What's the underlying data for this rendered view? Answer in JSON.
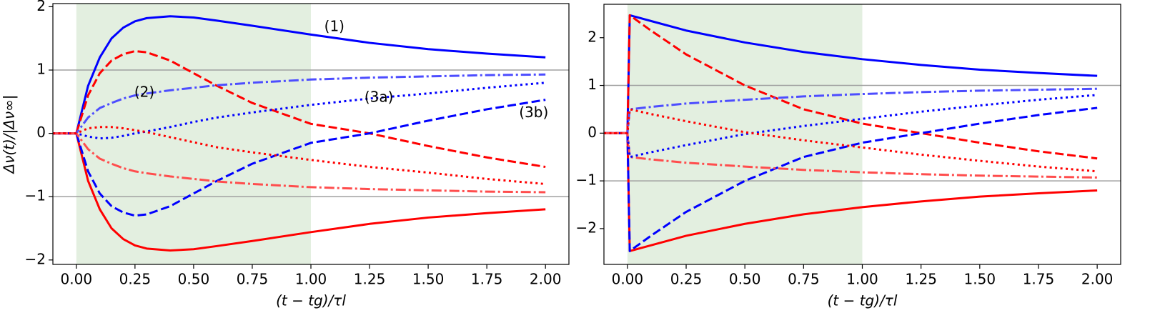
{
  "chart_data": [
    {
      "type": "line",
      "xlabel": "(t − tg)/τl",
      "ylabel": "Δν(t)/|Δν∞|",
      "xlim": [
        -0.1,
        2.1
      ],
      "ylim": [
        -2.07,
        2.05
      ],
      "xticks": [
        {
          "value": 0,
          "label": "0.00"
        },
        {
          "value": 0.25,
          "label": "0.25"
        },
        {
          "value": 0.5,
          "label": "0.50"
        },
        {
          "value": 0.75,
          "label": "0.75"
        },
        {
          "value": 1,
          "label": "1.00"
        },
        {
          "value": 1.25,
          "label": "1.25"
        },
        {
          "value": 1.5,
          "label": "1.50"
        },
        {
          "value": 1.75,
          "label": "1.75"
        },
        {
          "value": 2,
          "label": "2.00"
        }
      ],
      "yticks": [
        {
          "value": -2,
          "label": "−2"
        },
        {
          "value": -1,
          "label": "−1"
        },
        0,
        1,
        2
      ],
      "shade": [
        0,
        1
      ],
      "shade_color": "#e3efe0",
      "hlines": [
        -1,
        1
      ],
      "annotations": [
        "(1)",
        "(2)",
        "(3a)",
        "(3b)"
      ],
      "x": [
        -0.1,
        0,
        0.05,
        0.1,
        0.15,
        0.2,
        0.25,
        0.3,
        0.4,
        0.5,
        0.6,
        0.75,
        1.0,
        1.25,
        1.5,
        1.75,
        2.0
      ],
      "series": [
        {
          "color": "#0000ff",
          "style": "solid",
          "values": [
            0,
            0,
            0.75,
            1.2,
            1.5,
            1.67,
            1.77,
            1.82,
            1.85,
            1.83,
            1.78,
            1.7,
            1.56,
            1.43,
            1.33,
            1.26,
            1.2
          ]
        },
        {
          "color": "#ff0000",
          "style": "solid",
          "values": [
            0,
            0,
            -0.75,
            -1.2,
            -1.5,
            -1.67,
            -1.77,
            -1.82,
            -1.85,
            -1.83,
            -1.78,
            -1.7,
            -1.56,
            -1.43,
            -1.33,
            -1.26,
            -1.2
          ]
        },
        {
          "color": "#ff0000",
          "style": "dashed",
          "values": [
            0,
            0,
            0.6,
            0.95,
            1.15,
            1.25,
            1.3,
            1.28,
            1.15,
            0.95,
            0.75,
            0.48,
            0.15,
            0,
            -0.2,
            -0.38,
            -0.53
          ]
        },
        {
          "color": "#0000ff",
          "style": "dashed",
          "values": [
            0,
            0,
            -0.6,
            -0.95,
            -1.15,
            -1.25,
            -1.3,
            -1.28,
            -1.15,
            -0.95,
            -0.75,
            -0.48,
            -0.15,
            0,
            0.2,
            0.38,
            0.53
          ]
        },
        {
          "color": "#4d4dff",
          "style": "dashdot",
          "values": [
            0,
            0,
            0.25,
            0.4,
            0.48,
            0.55,
            0.6,
            0.63,
            0.68,
            0.72,
            0.76,
            0.8,
            0.85,
            0.88,
            0.9,
            0.92,
            0.93
          ]
        },
        {
          "color": "#ff4d4d",
          "style": "dashdot",
          "values": [
            0,
            0,
            -0.25,
            -0.4,
            -0.48,
            -0.55,
            -0.6,
            -0.63,
            -0.68,
            -0.72,
            -0.76,
            -0.8,
            -0.85,
            -0.88,
            -0.9,
            -0.92,
            -0.93
          ]
        },
        {
          "color": "#0000ff",
          "style": "dotted",
          "values": [
            0,
            0,
            -0.05,
            -0.08,
            -0.07,
            -0.04,
            0,
            0.03,
            0.1,
            0.18,
            0.25,
            0.33,
            0.45,
            0.55,
            0.63,
            0.72,
            0.8
          ]
        },
        {
          "color": "#ff0000",
          "style": "dotted",
          "values": [
            0,
            0,
            0.08,
            0.1,
            0.1,
            0.08,
            0.05,
            0.02,
            -0.06,
            -0.14,
            -0.22,
            -0.3,
            -0.42,
            -0.53,
            -0.62,
            -0.72,
            -0.8
          ]
        }
      ]
    },
    {
      "type": "line",
      "xlabel": "(t − tg)/τl",
      "xlim": [
        -0.1,
        2.1
      ],
      "ylim": [
        -2.75,
        2.7
      ],
      "xticks": [
        {
          "value": 0,
          "label": "0.00"
        },
        {
          "value": 0.25,
          "label": "0.25"
        },
        {
          "value": 0.5,
          "label": "0.50"
        },
        {
          "value": 0.75,
          "label": "0.75"
        },
        {
          "value": 1,
          "label": "1.00"
        },
        {
          "value": 1.25,
          "label": "1.25"
        },
        {
          "value": 1.5,
          "label": "1.50"
        },
        {
          "value": 1.75,
          "label": "1.75"
        },
        {
          "value": 2,
          "label": "2.00"
        }
      ],
      "yticks": [
        {
          "value": -2,
          "label": "−2"
        },
        {
          "value": -1,
          "label": "−1"
        },
        0,
        1,
        2
      ],
      "shade": [
        0,
        1
      ],
      "shade_color": "#e3efe0",
      "hlines": [
        -1,
        1
      ],
      "x": [
        -0.1,
        0,
        0.01,
        0.1,
        0.25,
        0.5,
        0.75,
        1.0,
        1.25,
        1.5,
        1.75,
        2.0
      ],
      "series": [
        {
          "color": "#0000ff",
          "style": "solid",
          "values": [
            0,
            0,
            2.47,
            2.35,
            2.15,
            1.9,
            1.7,
            1.55,
            1.43,
            1.33,
            1.26,
            1.2
          ]
        },
        {
          "color": "#ff0000",
          "style": "solid",
          "values": [
            0,
            0,
            -2.47,
            -2.35,
            -2.15,
            -1.9,
            -1.7,
            -1.55,
            -1.43,
            -1.33,
            -1.26,
            -1.2
          ]
        },
        {
          "color": "#ff0000",
          "style": "dashed",
          "values": [
            0,
            0,
            2.47,
            2.15,
            1.65,
            1.0,
            0.5,
            0.2,
            0,
            -0.2,
            -0.38,
            -0.53
          ]
        },
        {
          "color": "#0000ff",
          "style": "dashed",
          "values": [
            0,
            0,
            -2.47,
            -2.15,
            -1.65,
            -1.0,
            -0.5,
            -0.2,
            0,
            0.2,
            0.38,
            0.53
          ]
        },
        {
          "color": "#4d4dff",
          "style": "dashdot",
          "values": [
            0,
            0,
            0.5,
            0.55,
            0.62,
            0.7,
            0.77,
            0.82,
            0.86,
            0.89,
            0.91,
            0.93
          ]
        },
        {
          "color": "#ff4d4d",
          "style": "dashdot",
          "values": [
            0,
            0,
            -0.5,
            -0.55,
            -0.62,
            -0.7,
            -0.77,
            -0.82,
            -0.86,
            -0.89,
            -0.91,
            -0.93
          ]
        },
        {
          "color": "#0000ff",
          "style": "dotted",
          "values": [
            0,
            0,
            -0.5,
            -0.4,
            -0.25,
            -0.02,
            0.15,
            0.3,
            0.45,
            0.58,
            0.7,
            0.8
          ]
        },
        {
          "color": "#ff0000",
          "style": "dotted",
          "values": [
            0,
            0,
            0.5,
            0.4,
            0.25,
            0.02,
            -0.15,
            -0.3,
            -0.45,
            -0.58,
            -0.7,
            -0.8
          ]
        }
      ]
    }
  ]
}
